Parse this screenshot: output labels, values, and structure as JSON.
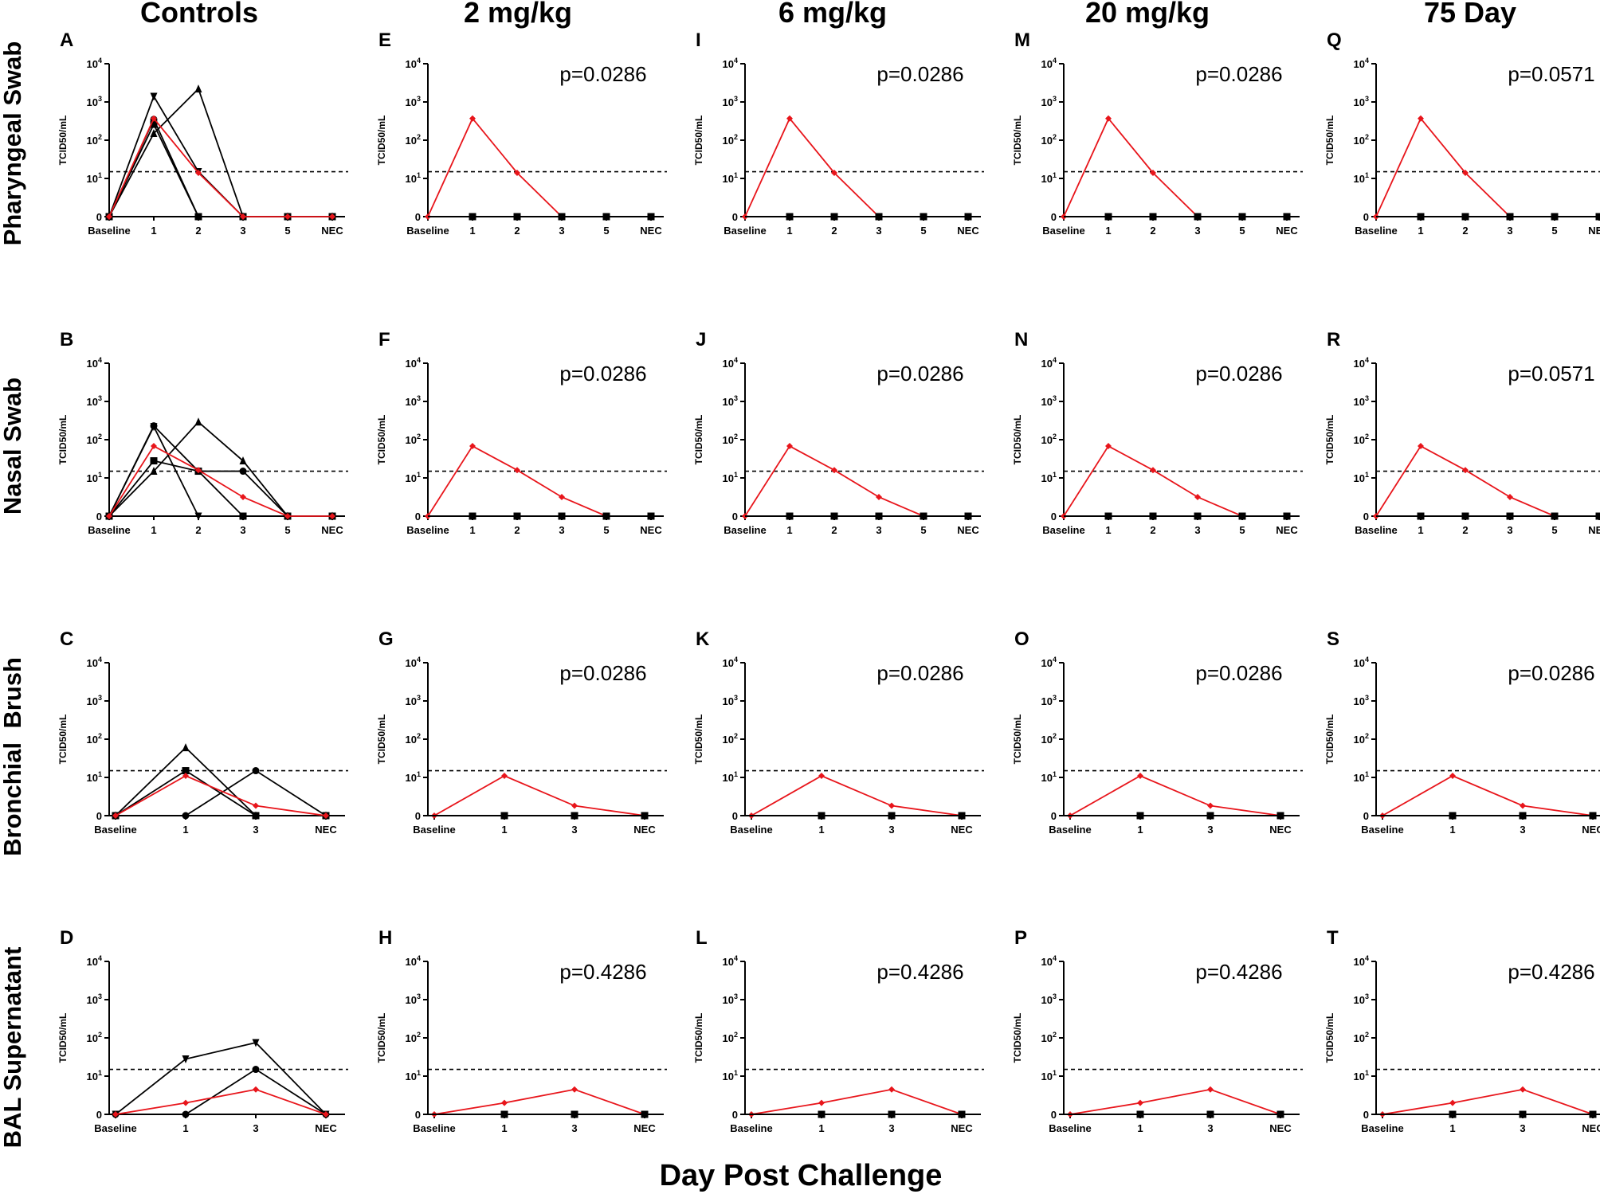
{
  "figure": {
    "column_titles": [
      "Controls",
      "2 mg/kg",
      "6 mg/kg",
      "20 mg/kg",
      "75 Day"
    ],
    "row_titles": [
      "Pharyngeal Swab",
      "Nasal Swab",
      "Bronchial  Brush",
      "BAL Supernatant"
    ],
    "y_axis_label": "TCID50/mL",
    "x_axis_title": "Day Post Challenge",
    "colors": {
      "control": "#000000",
      "mean": "#e8151b",
      "axis": "#000000"
    }
  },
  "chart_data": {
    "type": "line",
    "y_scale": "log10 with zero at baseline",
    "y_ticks": [
      "0",
      "10^1",
      "10^2",
      "10^3",
      "10^4"
    ],
    "limit_of_detection": 15,
    "x_categories": {
      "swab": [
        "Baseline",
        "1",
        "2",
        "3",
        "5",
        "NEC"
      ],
      "lower": [
        "Baseline",
        "1",
        "3",
        "NEC"
      ]
    },
    "rows": [
      {
        "name": "Pharyngeal Swab",
        "x_set": "swab",
        "controls": [
          {
            "marker": "triangle-down",
            "values": [
              0,
              1400,
              15,
              0,
              0,
              0
            ]
          },
          {
            "marker": "triangle",
            "values": [
              0,
              150,
              2200,
              0,
              0,
              0
            ]
          },
          {
            "marker": "circle",
            "values": [
              0,
              350,
              0,
              0,
              0,
              0
            ]
          },
          {
            "marker": "square",
            "values": [
              0,
              260,
              0,
              0,
              0,
              0
            ]
          }
        ],
        "control_mean": [
          0,
          370,
          14,
          0,
          0,
          0
        ],
        "treated_mean": [
          0,
          370,
          14,
          0,
          0,
          0
        ],
        "treated_zero": [
          0,
          0,
          0,
          0,
          0,
          0
        ]
      },
      {
        "name": "Nasal Swab",
        "x_set": "swab",
        "controls": [
          {
            "marker": "circle",
            "values": [
              0,
              230,
              15,
              15,
              0,
              0
            ]
          },
          {
            "marker": "triangle",
            "values": [
              0,
              15,
              290,
              28,
              0,
              0
            ]
          },
          {
            "marker": "square",
            "values": [
              0,
              28,
              15,
              0,
              0,
              0
            ]
          },
          {
            "marker": "triangle-down",
            "values": [
              0,
              220,
              0,
              0,
              0,
              0
            ]
          }
        ],
        "control_mean": [
          0,
          68,
          16,
          5,
          0,
          0
        ],
        "treated_mean": [
          0,
          68,
          16,
          5,
          0,
          0
        ],
        "treated_zero": [
          0,
          0,
          0,
          0,
          0,
          0
        ]
      },
      {
        "name": "Bronchial  Brush",
        "x_set": "lower",
        "controls": [
          {
            "marker": "triangle",
            "values": [
              0,
              60,
              0,
              0
            ]
          },
          {
            "marker": "square",
            "values": [
              0,
              15,
              0,
              0
            ]
          },
          {
            "marker": "circle",
            "values": [
              0,
              0,
              15,
              0
            ]
          }
        ],
        "control_mean": [
          0,
          11,
          2.6,
          0
        ],
        "treated_mean": [
          0,
          11,
          2.6,
          0
        ],
        "treated_zero": [
          0,
          0,
          0,
          0
        ]
      },
      {
        "name": "BAL Supernatant",
        "x_set": "lower",
        "controls": [
          {
            "marker": "triangle-down",
            "values": [
              0,
              28,
              75,
              0
            ]
          },
          {
            "marker": "circle",
            "values": [
              0,
              0,
              15,
              0
            ]
          }
        ],
        "control_mean": [
          0,
          3,
          6.5,
          0
        ],
        "treated_mean": [
          0,
          3,
          6.5,
          0
        ],
        "treated_zero": [
          0,
          0,
          0,
          0
        ]
      }
    ],
    "panels": [
      {
        "letter": "A",
        "row": 0,
        "col": 0,
        "p": ""
      },
      {
        "letter": "B",
        "row": 1,
        "col": 0,
        "p": ""
      },
      {
        "letter": "C",
        "row": 2,
        "col": 0,
        "p": ""
      },
      {
        "letter": "D",
        "row": 3,
        "col": 0,
        "p": ""
      },
      {
        "letter": "E",
        "row": 0,
        "col": 1,
        "p": "p=0.0286"
      },
      {
        "letter": "F",
        "row": 1,
        "col": 1,
        "p": "p=0.0286"
      },
      {
        "letter": "G",
        "row": 2,
        "col": 1,
        "p": "p=0.0286"
      },
      {
        "letter": "H",
        "row": 3,
        "col": 1,
        "p": "p=0.4286"
      },
      {
        "letter": "I",
        "row": 0,
        "col": 2,
        "p": "p=0.0286"
      },
      {
        "letter": "J",
        "row": 1,
        "col": 2,
        "p": "p=0.0286"
      },
      {
        "letter": "K",
        "row": 2,
        "col": 2,
        "p": "p=0.0286"
      },
      {
        "letter": "L",
        "row": 3,
        "col": 2,
        "p": "p=0.4286"
      },
      {
        "letter": "M",
        "row": 0,
        "col": 3,
        "p": "p=0.0286"
      },
      {
        "letter": "N",
        "row": 1,
        "col": 3,
        "p": "p=0.0286"
      },
      {
        "letter": "O",
        "row": 2,
        "col": 3,
        "p": "p=0.0286"
      },
      {
        "letter": "P",
        "row": 3,
        "col": 3,
        "p": "p=0.4286"
      },
      {
        "letter": "Q",
        "row": 0,
        "col": 4,
        "p": "p=0.0571"
      },
      {
        "letter": "R",
        "row": 1,
        "col": 4,
        "p": "p=0.0571"
      },
      {
        "letter": "S",
        "row": 2,
        "col": 4,
        "p": "p=0.0286"
      },
      {
        "letter": "T",
        "row": 3,
        "col": 4,
        "p": "p=0.4286"
      }
    ]
  }
}
